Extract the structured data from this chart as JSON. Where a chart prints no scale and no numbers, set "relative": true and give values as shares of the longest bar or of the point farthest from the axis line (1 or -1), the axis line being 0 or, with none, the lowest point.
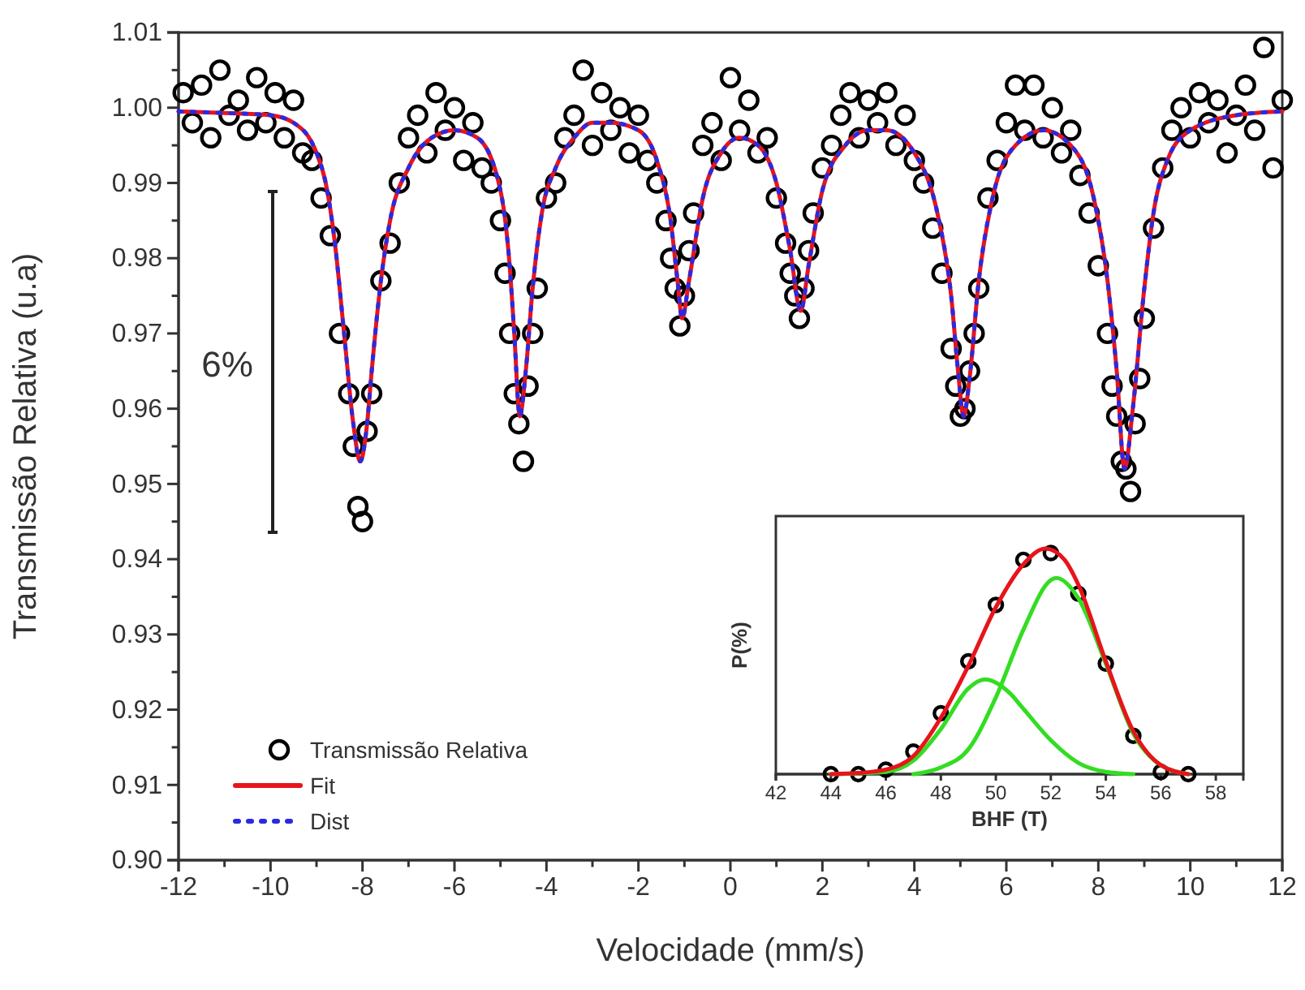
{
  "chart_data": [
    {
      "type": "scatter",
      "xlabel": "Velocidade (mm/s)",
      "ylabel": "Transmissão Relativa (u.a)",
      "xlim": [
        -12,
        12
      ],
      "ylim": [
        0.9,
        1.01
      ],
      "xticks": [
        -12,
        {
          "value": -11,
          "label": null
        },
        -10,
        {
          "value": -9,
          "label": null
        },
        -8,
        {
          "value": -7,
          "label": null
        },
        -6,
        {
          "value": -5,
          "label": null
        },
        -4,
        {
          "value": -3,
          "label": null
        },
        -2,
        {
          "value": -1,
          "label": null
        },
        0,
        {
          "value": 1,
          "label": null
        },
        2,
        {
          "value": 3,
          "label": null
        },
        4,
        {
          "value": 5,
          "label": null
        },
        6,
        {
          "value": 7,
          "label": null
        },
        8,
        {
          "value": 9,
          "label": null
        },
        10,
        {
          "value": 11,
          "label": null
        },
        12
      ],
      "yticks": [
        {
          "value": 0.9,
          "label": "0.90"
        },
        {
          "value": 0.905,
          "label": null
        },
        {
          "value": 0.91,
          "label": "0.91"
        },
        {
          "value": 0.915,
          "label": null
        },
        {
          "value": 0.92,
          "label": "0.92"
        },
        {
          "value": 0.925,
          "label": null
        },
        {
          "value": 0.93,
          "label": "0.93"
        },
        {
          "value": 0.935,
          "label": null
        },
        {
          "value": 0.94,
          "label": "0.94"
        },
        {
          "value": 0.945,
          "label": null
        },
        {
          "value": 0.95,
          "label": "0.95"
        },
        {
          "value": 0.955,
          "label": null
        },
        {
          "value": 0.96,
          "label": "0.96"
        },
        {
          "value": 0.965,
          "label": null
        },
        {
          "value": 0.97,
          "label": "0.97"
        },
        {
          "value": 0.975,
          "label": null
        },
        {
          "value": 0.98,
          "label": "0.98"
        },
        {
          "value": 0.985,
          "label": null
        },
        {
          "value": 0.99,
          "label": "0.99"
        },
        {
          "value": 0.995,
          "label": null
        },
        {
          "value": 1.0,
          "label": "1.00"
        },
        {
          "value": 1.005,
          "label": null
        },
        {
          "value": 1.01,
          "label": "1.01"
        }
      ],
      "legend": "bottom left",
      "annotations": [
        "6%"
      ],
      "series": [
        {
          "name": "Transmissão Relativa",
          "marker": "circle",
          "color": "#000000",
          "x": [
            -11.9,
            -11.7,
            -11.5,
            -11.3,
            -11.1,
            -10.9,
            -10.7,
            -10.5,
            -10.3,
            -10.1,
            -9.9,
            -9.7,
            -9.5,
            -9.3,
            -9.1,
            -8.9,
            -8.7,
            -8.5,
            -8.3,
            -8.2,
            -8.1,
            -8.0,
            -7.9,
            -7.8,
            -7.6,
            -7.4,
            -7.2,
            -7.0,
            -6.8,
            -6.6,
            -6.4,
            -6.2,
            -6.0,
            -5.8,
            -5.6,
            -5.4,
            -5.2,
            -5.0,
            -4.9,
            -4.8,
            -4.7,
            -4.6,
            -4.5,
            -4.4,
            -4.3,
            -4.2,
            -4.0,
            -3.8,
            -3.6,
            -3.4,
            -3.2,
            -3.0,
            -2.8,
            -2.6,
            -2.4,
            -2.2,
            -2.0,
            -1.8,
            -1.6,
            -1.4,
            -1.3,
            -1.2,
            -1.1,
            -1.0,
            -0.9,
            -0.8,
            -0.6,
            -0.4,
            -0.2,
            0.0,
            0.2,
            0.4,
            0.6,
            0.8,
            1.0,
            1.2,
            1.3,
            1.4,
            1.5,
            1.6,
            1.7,
            1.8,
            2.0,
            2.2,
            2.4,
            2.6,
            2.8,
            3.0,
            3.2,
            3.4,
            3.6,
            3.8,
            4.0,
            4.2,
            4.4,
            4.6,
            4.8,
            4.9,
            5.0,
            5.1,
            5.2,
            5.3,
            5.4,
            5.6,
            5.8,
            6.0,
            6.2,
            6.4,
            6.6,
            6.8,
            7.0,
            7.2,
            7.4,
            7.6,
            7.8,
            8.0,
            8.2,
            8.3,
            8.4,
            8.5,
            8.6,
            8.7,
            8.8,
            8.9,
            9.0,
            9.2,
            9.4,
            9.6,
            9.8,
            10.0,
            10.2,
            10.4,
            10.6,
            10.8,
            11.0,
            11.2,
            11.4,
            11.6,
            11.8,
            12.0
          ],
          "values": [
            1.002,
            0.998,
            1.003,
            0.996,
            1.005,
            0.999,
            1.001,
            0.997,
            1.004,
            0.998,
            1.002,
            0.996,
            1.001,
            0.994,
            0.993,
            0.988,
            0.983,
            0.97,
            0.962,
            0.955,
            0.947,
            0.945,
            0.957,
            0.962,
            0.977,
            0.982,
            0.99,
            0.996,
            0.999,
            0.994,
            1.002,
            0.997,
            1.0,
            0.993,
            0.998,
            0.992,
            0.99,
            0.985,
            0.978,
            0.97,
            0.962,
            0.958,
            0.953,
            0.963,
            0.97,
            0.976,
            0.988,
            0.99,
            0.996,
            0.999,
            1.005,
            0.995,
            1.002,
            0.997,
            1.0,
            0.994,
            0.999,
            0.993,
            0.99,
            0.985,
            0.98,
            0.976,
            0.971,
            0.975,
            0.981,
            0.986,
            0.995,
            0.998,
            0.993,
            1.004,
            0.997,
            1.001,
            0.994,
            0.996,
            0.988,
            0.982,
            0.978,
            0.975,
            0.972,
            0.976,
            0.981,
            0.986,
            0.992,
            0.995,
            0.999,
            1.002,
            0.996,
            1.001,
            0.998,
            1.002,
            0.995,
            0.999,
            0.993,
            0.99,
            0.984,
            0.978,
            0.968,
            0.963,
            0.959,
            0.96,
            0.965,
            0.97,
            0.976,
            0.988,
            0.993,
            0.998,
            1.003,
            0.997,
            1.003,
            0.996,
            1.0,
            0.994,
            0.997,
            0.991,
            0.986,
            0.979,
            0.97,
            0.963,
            0.959,
            0.953,
            0.952,
            0.949,
            0.958,
            0.964,
            0.972,
            0.984,
            0.992,
            0.997,
            1.0,
            0.996,
            1.002,
            0.998,
            1.001,
            0.994,
            0.999,
            1.003,
            0.997,
            1.008,
            0.992,
            1.001
          ]
        },
        {
          "name": "Fit",
          "type": "line",
          "color": "#e8141b",
          "line_style": "solid",
          "x": [
            -12,
            -11,
            -10,
            -9.5,
            -9,
            -8.8,
            -8.6,
            -8.4,
            -8.2,
            -8.05,
            -7.9,
            -7.8,
            -7.6,
            -7.4,
            -7.0,
            -6.5,
            -6.0,
            -5.5,
            -5.0,
            -4.8,
            -4.7,
            -4.58,
            -4.45,
            -4.3,
            -4.1,
            -3.8,
            -3.4,
            -3.0,
            -2.6,
            -2.0,
            -1.6,
            -1.3,
            -1.15,
            -1.05,
            -0.9,
            -0.6,
            -0.2,
            0.2,
            0.6,
            1.0,
            1.3,
            1.53,
            1.7,
            2.0,
            2.5,
            3.0,
            3.4,
            4.0,
            4.5,
            4.8,
            4.95,
            5.07,
            5.2,
            5.4,
            5.7,
            6.2,
            6.8,
            7.4,
            7.9,
            8.2,
            8.4,
            8.57,
            8.75,
            9.0,
            9.2,
            9.5,
            10,
            11,
            12
          ],
          "values": [
            0.9995,
            0.9993,
            0.999,
            0.998,
            0.994,
            0.99,
            0.982,
            0.97,
            0.958,
            0.953,
            0.958,
            0.965,
            0.977,
            0.985,
            0.992,
            0.996,
            0.997,
            0.996,
            0.989,
            0.979,
            0.97,
            0.959,
            0.965,
            0.976,
            0.986,
            0.992,
            0.996,
            0.998,
            0.998,
            0.997,
            0.993,
            0.985,
            0.977,
            0.972,
            0.977,
            0.988,
            0.994,
            0.996,
            0.995,
            0.99,
            0.981,
            0.973,
            0.979,
            0.989,
            0.995,
            0.997,
            0.997,
            0.994,
            0.986,
            0.975,
            0.965,
            0.959,
            0.964,
            0.977,
            0.988,
            0.995,
            0.997,
            0.995,
            0.988,
            0.977,
            0.965,
            0.952,
            0.96,
            0.976,
            0.986,
            0.993,
            0.997,
            0.999,
            0.9995
          ]
        },
        {
          "name": "Dist",
          "type": "line",
          "color": "#2a2ae0",
          "line_style": "dotted",
          "x": [
            -12,
            -11,
            -10,
            -9.5,
            -9,
            -8.8,
            -8.6,
            -8.4,
            -8.2,
            -8.05,
            -7.9,
            -7.8,
            -7.6,
            -7.4,
            -7.0,
            -6.5,
            -6.0,
            -5.5,
            -5.0,
            -4.8,
            -4.7,
            -4.58,
            -4.45,
            -4.3,
            -4.1,
            -3.8,
            -3.4,
            -3.0,
            -2.6,
            -2.0,
            -1.6,
            -1.3,
            -1.15,
            -1.05,
            -0.9,
            -0.6,
            -0.2,
            0.2,
            0.6,
            1.0,
            1.3,
            1.53,
            1.7,
            2.0,
            2.5,
            3.0,
            3.4,
            4.0,
            4.5,
            4.8,
            4.95,
            5.07,
            5.2,
            5.4,
            5.7,
            6.2,
            6.8,
            7.4,
            7.9,
            8.2,
            8.4,
            8.57,
            8.75,
            9.0,
            9.2,
            9.5,
            10,
            11,
            12
          ],
          "values": [
            0.9995,
            0.9993,
            0.999,
            0.998,
            0.994,
            0.99,
            0.982,
            0.97,
            0.958,
            0.953,
            0.958,
            0.965,
            0.977,
            0.985,
            0.992,
            0.996,
            0.997,
            0.996,
            0.989,
            0.979,
            0.97,
            0.959,
            0.965,
            0.976,
            0.986,
            0.992,
            0.996,
            0.998,
            0.998,
            0.997,
            0.993,
            0.985,
            0.977,
            0.972,
            0.977,
            0.988,
            0.994,
            0.996,
            0.995,
            0.99,
            0.981,
            0.973,
            0.979,
            0.989,
            0.995,
            0.997,
            0.997,
            0.994,
            0.986,
            0.975,
            0.965,
            0.959,
            0.964,
            0.977,
            0.988,
            0.995,
            0.997,
            0.995,
            0.988,
            0.977,
            0.965,
            0.952,
            0.96,
            0.976,
            0.986,
            0.993,
            0.997,
            0.999,
            0.9995
          ]
        }
      ]
    },
    {
      "type": "scatter",
      "xlabel": "BHF (T)",
      "ylabel": "P(%)",
      "relative": true,
      "xlim": [
        42,
        59
      ],
      "xticks": [
        42,
        44,
        46,
        48,
        50,
        52,
        54,
        56,
        58
      ],
      "tick_labels": "x",
      "series": [
        {
          "marker": "circle",
          "color": "#000000",
          "x": [
            44,
            45,
            46,
            47,
            48,
            49,
            50,
            51,
            52,
            53,
            54,
            55,
            56,
            57
          ],
          "values": [
            0,
            0,
            0.02,
            0.1,
            0.27,
            0.5,
            0.75,
            0.95,
            0.98,
            0.8,
            0.49,
            0.17,
            0.01,
            0
          ]
        },
        {
          "type": "line",
          "color": "#33dd22",
          "x": [
            44,
            46,
            47,
            48,
            49,
            49.6,
            50.5,
            51,
            52,
            53,
            54,
            55
          ],
          "values": [
            0,
            0.01,
            0.06,
            0.2,
            0.38,
            0.42,
            0.36,
            0.29,
            0.15,
            0.05,
            0.01,
            0
          ]
        },
        {
          "type": "line",
          "color": "#33dd22",
          "x": [
            47,
            48,
            49,
            50,
            51,
            52,
            52.2,
            53,
            54,
            55,
            56,
            57
          ],
          "values": [
            0,
            0.03,
            0.11,
            0.34,
            0.64,
            0.86,
            0.87,
            0.78,
            0.49,
            0.18,
            0.04,
            0
          ]
        },
        {
          "type": "line",
          "color": "#e8141b",
          "x": [
            44,
            45,
            46,
            47,
            48,
            49,
            50,
            51,
            51.8,
            52.5,
            53,
            54,
            55,
            56,
            57
          ],
          "values": [
            0,
            0.005,
            0.02,
            0.08,
            0.25,
            0.48,
            0.74,
            0.93,
            1,
            0.95,
            0.84,
            0.5,
            0.19,
            0.04,
            0
          ]
        }
      ]
    }
  ]
}
